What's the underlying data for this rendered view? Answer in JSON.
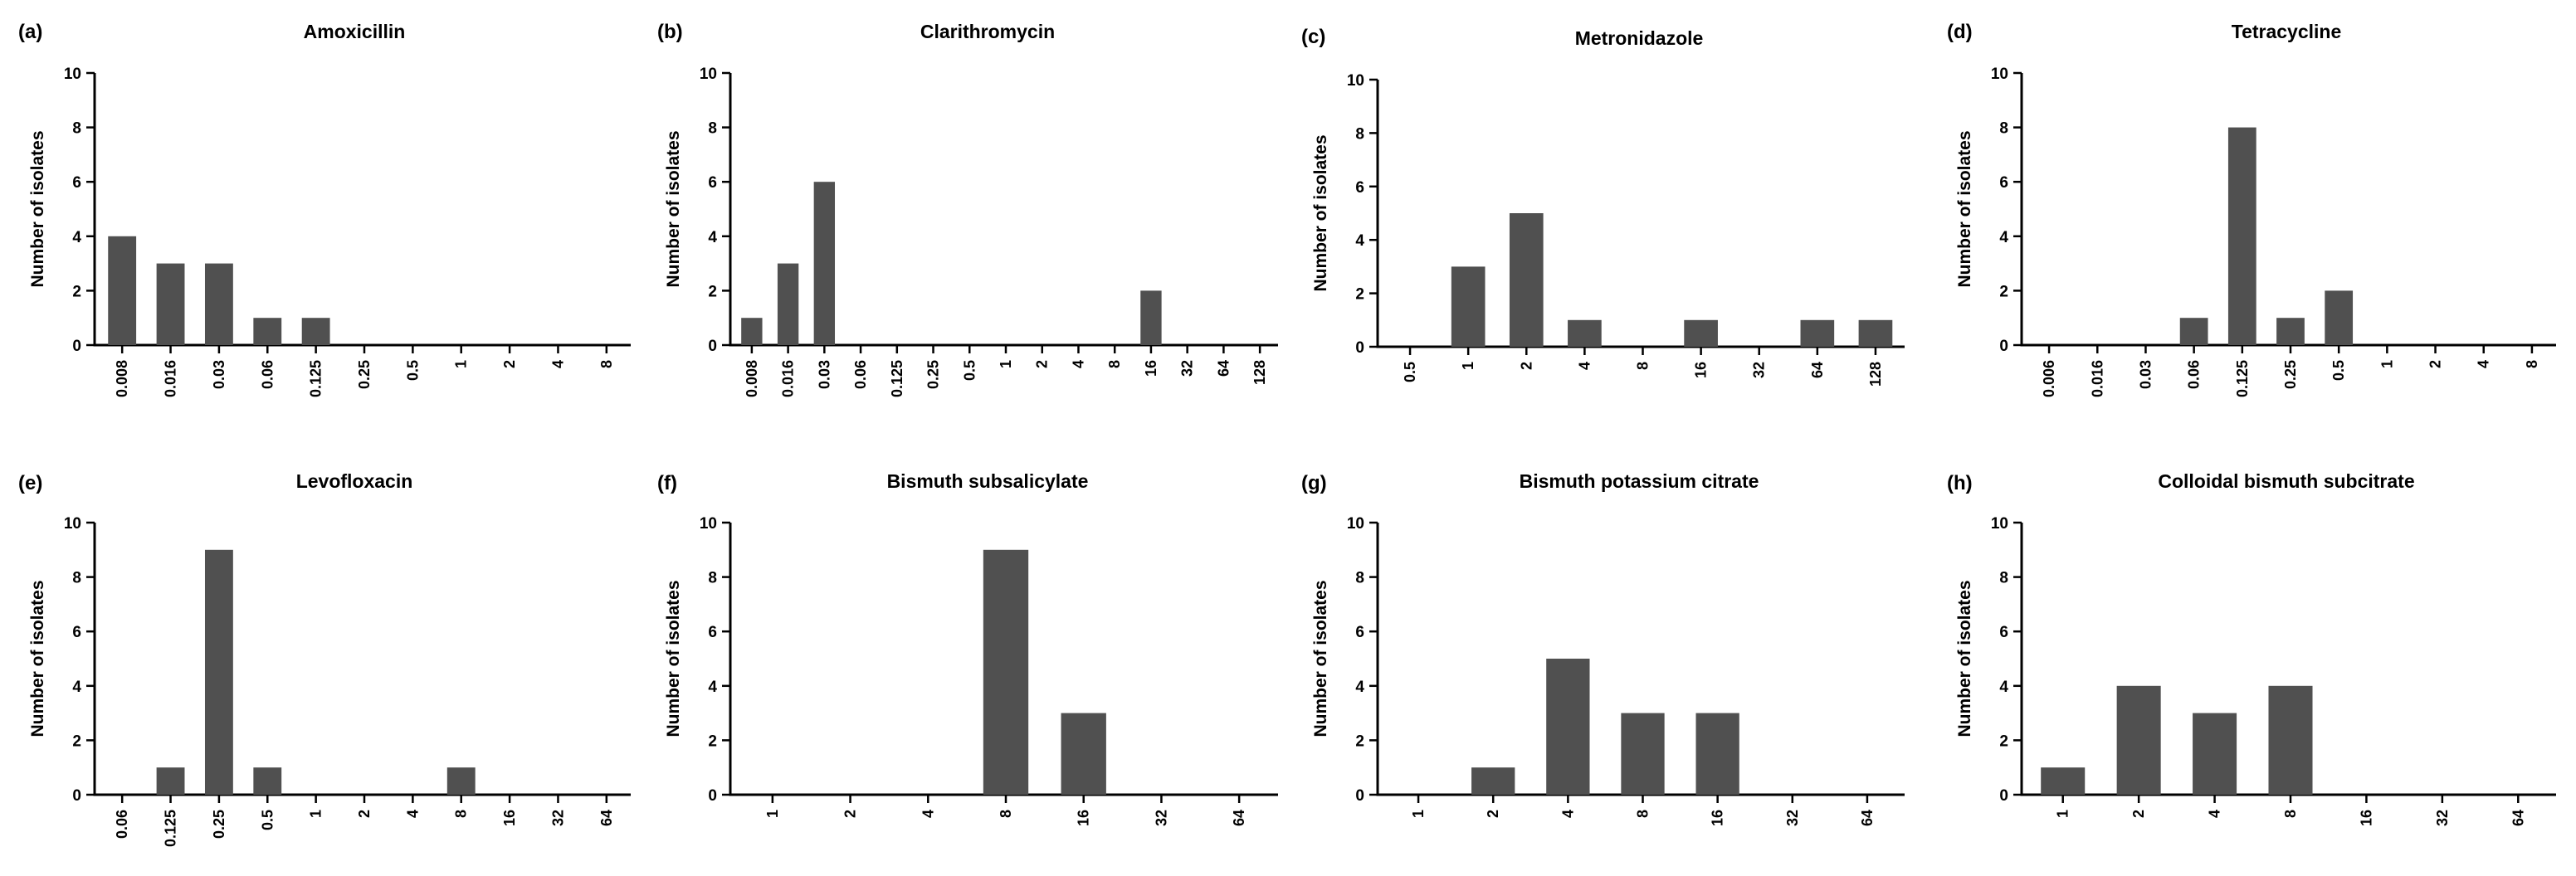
{
  "bar_color": "#505050",
  "chart_data": [
    {
      "panel": "(a)",
      "title": "Amoxicillin",
      "type": "bar",
      "xlabel": "",
      "ylabel": "Number of isolates",
      "ylim": [
        0,
        10
      ],
      "yticks": [
        "0",
        "2",
        "4",
        "6",
        "8",
        "10"
      ],
      "categories": [
        "0.008",
        "0.016",
        "0.03",
        "0.06",
        "0.125",
        "0.25",
        "0.5",
        "1",
        "2",
        "4",
        "8"
      ],
      "values": [
        4,
        3,
        3,
        1,
        1,
        0,
        0,
        0,
        0,
        0,
        0
      ]
    },
    {
      "panel": "(b)",
      "title": "Clarithromycin",
      "type": "bar",
      "xlabel": "",
      "ylabel": "Number of isolates",
      "ylim": [
        0,
        10
      ],
      "yticks": [
        "0",
        "2",
        "4",
        "6",
        "8",
        "10"
      ],
      "categories": [
        "0.008",
        "0.016",
        "0.03",
        "0.06",
        "0.125",
        "0.25",
        "0.5",
        "1",
        "2",
        "4",
        "8",
        "16",
        "32",
        "64",
        "128"
      ],
      "values": [
        1,
        3,
        6,
        0,
        0,
        0,
        0,
        0,
        0,
        0,
        0,
        2,
        0,
        0,
        0
      ]
    },
    {
      "panel": "(c)",
      "title": "Metronidazole",
      "type": "bar",
      "xlabel": "",
      "ylabel": "Number of isolates",
      "ylim": [
        0,
        10
      ],
      "yticks": [
        "0",
        "2",
        "4",
        "6",
        "8",
        "10"
      ],
      "categories": [
        "0.5",
        "1",
        "2",
        "4",
        "8",
        "16",
        "32",
        "64",
        "128"
      ],
      "values": [
        0,
        3,
        5,
        1,
        0,
        1,
        0,
        1,
        1
      ]
    },
    {
      "panel": "(d)",
      "title": "Tetracycline",
      "type": "bar",
      "xlabel": "",
      "ylabel": "Number of isolates",
      "ylim": [
        0,
        10
      ],
      "yticks": [
        "0",
        "2",
        "4",
        "6",
        "8",
        "10"
      ],
      "categories": [
        "0.006",
        "0.016",
        "0.03",
        "0.06",
        "0.125",
        "0.25",
        "0.5",
        "1",
        "2",
        "4",
        "8"
      ],
      "values": [
        0,
        0,
        0,
        1,
        8,
        1,
        2,
        0,
        0,
        0,
        0
      ]
    },
    {
      "panel": "(e)",
      "title": "Levofloxacin",
      "type": "bar",
      "xlabel": "",
      "ylabel": "Number of isolates",
      "ylim": [
        0,
        10
      ],
      "yticks": [
        "0",
        "2",
        "4",
        "6",
        "8",
        "10"
      ],
      "categories": [
        "0.06",
        "0.125",
        "0.25",
        "0.5",
        "1",
        "2",
        "4",
        "8",
        "16",
        "32",
        "64"
      ],
      "values": [
        0,
        1,
        9,
        1,
        0,
        0,
        0,
        1,
        0,
        0,
        0
      ]
    },
    {
      "panel": "(f)",
      "title": "Bismuth subsalicylate",
      "type": "bar",
      "xlabel": "",
      "ylabel": "Number of isolates",
      "ylim": [
        0,
        10
      ],
      "yticks": [
        "0",
        "2",
        "4",
        "6",
        "8",
        "10"
      ],
      "categories": [
        "1",
        "2",
        "4",
        "8",
        "16",
        "32",
        "64"
      ],
      "values": [
        0,
        0,
        0,
        9,
        3,
        0,
        0
      ]
    },
    {
      "panel": "(g)",
      "title": "Bismuth potassium citrate",
      "type": "bar",
      "xlabel": "",
      "ylabel": "Number of isolates",
      "ylim": [
        0,
        10
      ],
      "yticks": [
        "0",
        "2",
        "4",
        "6",
        "8",
        "10"
      ],
      "categories": [
        "1",
        "2",
        "4",
        "8",
        "16",
        "32",
        "64"
      ],
      "values": [
        0,
        1,
        5,
        3,
        3,
        0,
        0
      ]
    },
    {
      "panel": "(h)",
      "title": "Colloidal bismuth subcitrate",
      "type": "bar",
      "xlabel": "",
      "ylabel": "Number of isolates",
      "ylim": [
        0,
        10
      ],
      "yticks": [
        "0",
        "2",
        "4",
        "6",
        "8",
        "10"
      ],
      "categories": [
        "1",
        "2",
        "4",
        "8",
        "16",
        "32",
        "64"
      ],
      "values": [
        1,
        4,
        3,
        4,
        0,
        0,
        0
      ]
    }
  ]
}
